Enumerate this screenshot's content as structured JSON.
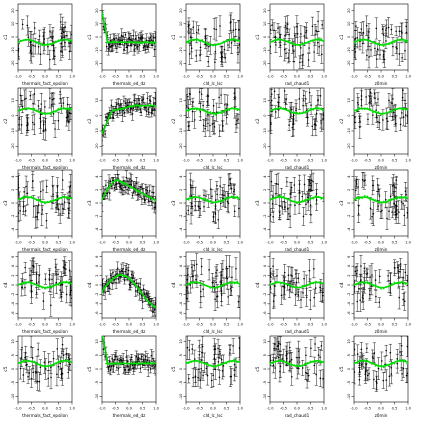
{
  "figure": {
    "x_params": [
      "thermals_fact_epsilon",
      "thermals_ed_dz",
      "cld_lc_lsc",
      "rad_chaud1",
      "z0min"
    ],
    "y_labels": [
      "c1",
      "c2",
      "c3",
      "c4",
      "c5"
    ]
  },
  "chart_data": [
    {
      "type": "scatter",
      "row": 1,
      "col": 1,
      "xlabel": "thermals_fact_epsilon",
      "ylabel": "c1",
      "xticks": [
        "-1.0",
        "-0.5",
        "0.0",
        "0.5",
        "1.0"
      ],
      "yticks": [
        "-20",
        "-10",
        "0",
        "10",
        "20"
      ],
      "xlim": [
        -1,
        1
      ],
      "ylim": [
        -25,
        25
      ],
      "pattern": "flat",
      "mean_y": -4
    },
    {
      "type": "scatter",
      "row": 1,
      "col": 2,
      "xlabel": "thermals_ed_dz",
      "ylabel": "c1",
      "xticks": [
        "-1.0",
        "-0.5",
        "0.0",
        "0.5",
        "1.0"
      ],
      "yticks": [
        "-20",
        "-10",
        "0",
        "10",
        "20"
      ],
      "xlim": [
        -1,
        1
      ],
      "ylim": [
        -25,
        25
      ],
      "pattern": "sharp_drop",
      "mean_y": -4
    },
    {
      "type": "scatter",
      "row": 1,
      "col": 3,
      "xlabel": "cld_lc_lsc",
      "ylabel": "c1",
      "xticks": [
        "-1.0",
        "-0.5",
        "0.0",
        "0.5",
        "1.0"
      ],
      "yticks": [
        "-20",
        "-10",
        "0",
        "10",
        "20"
      ],
      "xlim": [
        -1,
        1
      ],
      "ylim": [
        -25,
        25
      ],
      "pattern": "flat",
      "mean_y": -4
    },
    {
      "type": "scatter",
      "row": 1,
      "col": 4,
      "xlabel": "rad_chaud1",
      "ylabel": "c1",
      "xticks": [
        "-1.0",
        "-0.5",
        "0.0",
        "0.5",
        "1.0"
      ],
      "yticks": [
        "-20",
        "-10",
        "0",
        "10",
        "20"
      ],
      "xlim": [
        -1,
        1
      ],
      "ylim": [
        -25,
        25
      ],
      "pattern": "flat",
      "mean_y": -4
    },
    {
      "type": "scatter",
      "row": 1,
      "col": 5,
      "xlabel": "z0min",
      "ylabel": "c1",
      "xticks": [
        "-1.0",
        "-0.5",
        "0.0",
        "0.5",
        "1.0"
      ],
      "yticks": [
        "-20",
        "-10",
        "0",
        "10",
        "20"
      ],
      "xlim": [
        -1,
        1
      ],
      "ylim": [
        -25,
        25
      ],
      "pattern": "flat",
      "mean_y": -4
    },
    {
      "type": "scatter",
      "row": 2,
      "col": 1,
      "xlabel": "thermals_fact_epsilon",
      "ylabel": "c2",
      "xticks": [
        "-1.0",
        "-0.5",
        "0.0",
        "0.5",
        "1.0"
      ],
      "yticks": [
        "-20",
        "-10",
        "0",
        "10"
      ],
      "xlim": [
        -1,
        1
      ],
      "ylim": [
        -25,
        18
      ],
      "pattern": "flat",
      "mean_y": 3
    },
    {
      "type": "scatter",
      "row": 2,
      "col": 2,
      "xlabel": "thermals_ed_dz",
      "ylabel": "c2",
      "xticks": [
        "-1.0",
        "-0.5",
        "0.0",
        "0.5",
        "1.0"
      ],
      "yticks": [
        "-20",
        "-10",
        "0",
        "10"
      ],
      "xlim": [
        -1,
        1
      ],
      "ylim": [
        -25,
        18
      ],
      "pattern": "dip_rise",
      "mean_y": 3
    },
    {
      "type": "scatter",
      "row": 2,
      "col": 3,
      "xlabel": "cld_lc_lsc",
      "ylabel": "c2",
      "xticks": [
        "-1.0",
        "-0.5",
        "0.0",
        "0.5",
        "1.0"
      ],
      "yticks": [
        "-20",
        "-10",
        "0",
        "10"
      ],
      "xlim": [
        -1,
        1
      ],
      "ylim": [
        -25,
        18
      ],
      "pattern": "flat",
      "mean_y": 3
    },
    {
      "type": "scatter",
      "row": 2,
      "col": 4,
      "xlabel": "rad_chaud1",
      "ylabel": "c2",
      "xticks": [
        "-1.0",
        "-0.5",
        "0.0",
        "0.5",
        "1.0"
      ],
      "yticks": [
        "-20",
        "-10",
        "0",
        "10"
      ],
      "xlim": [
        -1,
        1
      ],
      "ylim": [
        -25,
        18
      ],
      "pattern": "flat",
      "mean_y": 3
    },
    {
      "type": "scatter",
      "row": 2,
      "col": 5,
      "xlabel": "z0min",
      "ylabel": "c2",
      "xticks": [
        "-1.0",
        "-0.5",
        "0.0",
        "0.5",
        "1.0"
      ],
      "yticks": [
        "-20",
        "-10",
        "0",
        "10"
      ],
      "xlim": [
        -1,
        1
      ],
      "ylim": [
        -25,
        18
      ],
      "pattern": "flat",
      "mean_y": 3
    },
    {
      "type": "scatter",
      "row": 3,
      "col": 1,
      "xlabel": "thermals_fact_epsilon",
      "ylabel": "c3",
      "xticks": [
        "-1.0",
        "-0.5",
        "0.0",
        "0.5",
        "1.0"
      ],
      "yticks": [
        "-4",
        "-2",
        "0",
        "2",
        "4"
      ],
      "xlim": [
        -1,
        1
      ],
      "ylim": [
        -5,
        5
      ],
      "pattern": "flat",
      "mean_y": 0.5
    },
    {
      "type": "scatter",
      "row": 3,
      "col": 2,
      "xlabel": "thermals_ed_dz",
      "ylabel": "c3",
      "xticks": [
        "-1.0",
        "-0.5",
        "0.0",
        "0.5",
        "1.0"
      ],
      "yticks": [
        "-4",
        "-2",
        "0",
        "2",
        "4"
      ],
      "xlim": [
        -1,
        1
      ],
      "ylim": [
        -5,
        5
      ],
      "pattern": "hump_drop",
      "mean_y": 0.5
    },
    {
      "type": "scatter",
      "row": 3,
      "col": 3,
      "xlabel": "cld_lc_lsc",
      "ylabel": "c3",
      "xticks": [
        "-1.0",
        "-0.5",
        "0.0",
        "0.5",
        "1.0"
      ],
      "yticks": [
        "-4",
        "-2",
        "0",
        "2",
        "4"
      ],
      "xlim": [
        -1,
        1
      ],
      "ylim": [
        -5,
        5
      ],
      "pattern": "flat",
      "mean_y": 0.5
    },
    {
      "type": "scatter",
      "row": 3,
      "col": 4,
      "xlabel": "rad_chaud1",
      "ylabel": "c3",
      "xticks": [
        "-1.0",
        "-0.5",
        "0.0",
        "0.5",
        "1.0"
      ],
      "yticks": [
        "-4",
        "-2",
        "0",
        "2",
        "4"
      ],
      "xlim": [
        -1,
        1
      ],
      "ylim": [
        -5,
        5
      ],
      "pattern": "flat",
      "mean_y": 0.5
    },
    {
      "type": "scatter",
      "row": 3,
      "col": 5,
      "xlabel": "z0min",
      "ylabel": "c3",
      "xticks": [
        "-1.0",
        "-0.5",
        "0.0",
        "0.5",
        "1.0"
      ],
      "yticks": [
        "-4",
        "-2",
        "0",
        "2",
        "4"
      ],
      "xlim": [
        -1,
        1
      ],
      "ylim": [
        -5,
        5
      ],
      "pattern": "flat",
      "mean_y": 0.5
    },
    {
      "type": "scatter",
      "row": 4,
      "col": 1,
      "xlabel": "thermals_fact_epsilon",
      "ylabel": "c4",
      "xticks": [
        "-1.0",
        "-0.5",
        "0.0",
        "0.5",
        "1.0"
      ],
      "yticks": [
        "-6",
        "-4",
        "-2",
        "0",
        "2",
        "4",
        "6"
      ],
      "xlim": [
        -1,
        1
      ],
      "ylim": [
        -7,
        7
      ],
      "pattern": "flat",
      "mean_y": 0
    },
    {
      "type": "scatter",
      "row": 4,
      "col": 2,
      "xlabel": "thermals_ed_dz",
      "ylabel": "c4",
      "xticks": [
        "-1.0",
        "-0.5",
        "0.0",
        "0.5",
        "1.0"
      ],
      "yticks": [
        "-6",
        "-4",
        "-2",
        "0",
        "2",
        "4",
        "6"
      ],
      "xlim": [
        -1,
        1
      ],
      "ylim": [
        -7,
        7
      ],
      "pattern": "hump_mid",
      "mean_y": 0
    },
    {
      "type": "scatter",
      "row": 4,
      "col": 3,
      "xlabel": "cld_lc_lsc",
      "ylabel": "c4",
      "xticks": [
        "-1.0",
        "-0.5",
        "0.0",
        "0.5",
        "1.0"
      ],
      "yticks": [
        "-6",
        "-4",
        "-2",
        "0",
        "2",
        "4",
        "6"
      ],
      "xlim": [
        -1,
        1
      ],
      "ylim": [
        -7,
        7
      ],
      "pattern": "flat",
      "mean_y": 0
    },
    {
      "type": "scatter",
      "row": 4,
      "col": 4,
      "xlabel": "rad_chaud1",
      "ylabel": "c4",
      "xticks": [
        "-1.0",
        "-0.5",
        "0.0",
        "0.5",
        "1.0"
      ],
      "yticks": [
        "-6",
        "-4",
        "-2",
        "0",
        "2",
        "4",
        "6"
      ],
      "xlim": [
        -1,
        1
      ],
      "ylim": [
        -7,
        7
      ],
      "pattern": "flat",
      "mean_y": 0
    },
    {
      "type": "scatter",
      "row": 4,
      "col": 5,
      "xlabel": "z0min",
      "ylabel": "c4",
      "xticks": [
        "-1.0",
        "-0.5",
        "0.0",
        "0.5",
        "1.0"
      ],
      "yticks": [
        "-6",
        "-4",
        "-2",
        "0",
        "2",
        "4",
        "6"
      ],
      "xlim": [
        -1,
        1
      ],
      "ylim": [
        -7,
        7
      ],
      "pattern": "flat",
      "mean_y": 0
    },
    {
      "type": "scatter",
      "row": 5,
      "col": 1,
      "xlabel": "thermals_fact_epsilon",
      "ylabel": "c5",
      "xticks": [
        "-1.0",
        "-0.5",
        "0.0",
        "0.5",
        "1.0"
      ],
      "yticks": [
        "-10",
        "-5",
        "0",
        "5",
        "10"
      ],
      "xlim": [
        -1,
        1
      ],
      "ylim": [
        -12,
        12
      ],
      "pattern": "flat",
      "mean_y": 2
    },
    {
      "type": "scatter",
      "row": 5,
      "col": 2,
      "xlabel": "thermals_ed_dz",
      "ylabel": "c5",
      "xticks": [
        "-1.0",
        "-0.5",
        "0.0",
        "0.5",
        "1.0"
      ],
      "yticks": [
        "-10",
        "-5",
        "0",
        "5",
        "10"
      ],
      "xlim": [
        -1,
        1
      ],
      "ylim": [
        -12,
        12
      ],
      "pattern": "sharp_drop",
      "mean_y": 2
    },
    {
      "type": "scatter",
      "row": 5,
      "col": 3,
      "xlabel": "cld_lc_lsc",
      "ylabel": "c5",
      "xticks": [
        "-1.0",
        "-0.5",
        "0.0",
        "0.5",
        "1.0"
      ],
      "yticks": [
        "-10",
        "-5",
        "0",
        "5",
        "10"
      ],
      "xlim": [
        -1,
        1
      ],
      "ylim": [
        -12,
        12
      ],
      "pattern": "flat",
      "mean_y": 2
    },
    {
      "type": "scatter",
      "row": 5,
      "col": 4,
      "xlabel": "rad_chaud1",
      "ylabel": "c5",
      "xticks": [
        "-1.0",
        "-0.5",
        "0.0",
        "0.5",
        "1.0"
      ],
      "yticks": [
        "-10",
        "-5",
        "0",
        "5",
        "10"
      ],
      "xlim": [
        -1,
        1
      ],
      "ylim": [
        -12,
        12
      ],
      "pattern": "flat",
      "mean_y": 2
    },
    {
      "type": "scatter",
      "row": 5,
      "col": 5,
      "xlabel": "z0min",
      "ylabel": "c5",
      "xticks": [
        "-1.0",
        "-0.5",
        "0.0",
        "0.5",
        "1.0"
      ],
      "yticks": [
        "-10",
        "-5",
        "0",
        "5",
        "10"
      ],
      "xlim": [
        -1,
        1
      ],
      "ylim": [
        -12,
        12
      ],
      "pattern": "flat",
      "mean_y": 2
    }
  ],
  "colors": {
    "fit": "#00dd00",
    "points": "#000000",
    "axes": "#000000"
  }
}
